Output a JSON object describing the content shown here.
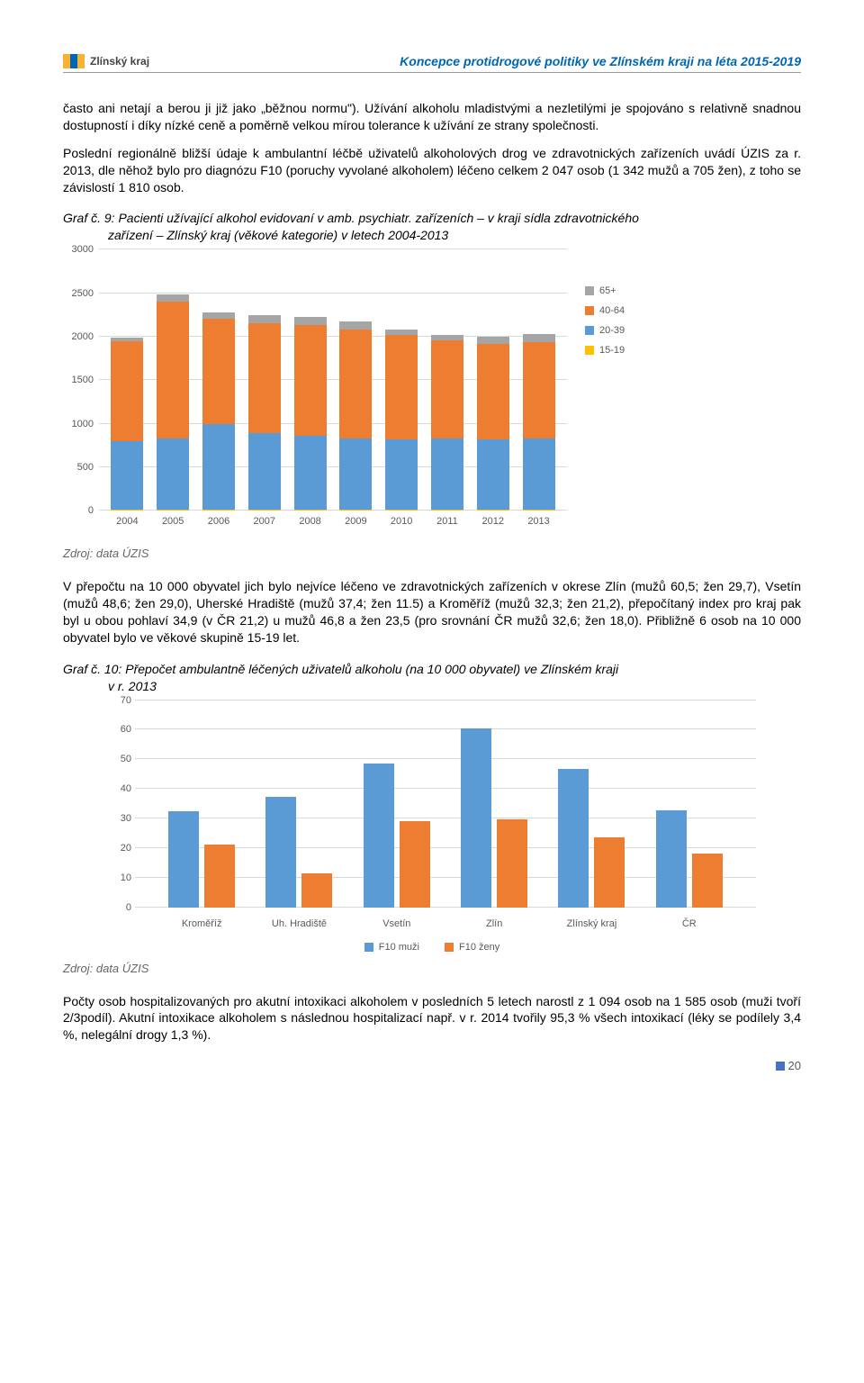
{
  "header": {
    "logo_text": "Zlínský kraj",
    "doc_title": "Koncepce protidrogové politiky ve Zlínském kraji na léta 2015-2019"
  },
  "paragraphs": {
    "p1": "často ani netají a berou ji již jako „běžnou normu\"). Užívání alkoholu mladistvými a nezletilými je spojováno s relativně snadnou dostupností i díky nízké ceně a poměrně velkou mírou tolerance k užívání ze strany společnosti.",
    "p2": "Poslední regionálně bližší údaje k ambulantní léčbě uživatelů alkoholových drog ve zdravotnických zařízeních uvádí ÚZIS za r. 2013, dle něhož bylo pro diagnózu F10 (poruchy vyvolané alkoholem) léčeno celkem 2 047 osob (1 342 mužů a 705 žen), z toho se závislostí 1 810 osob.",
    "p3": "V přepočtu na 10 000 obyvatel jich bylo nejvíce léčeno ve zdravotnických zařízeních v okrese Zlín (mužů 60,5; žen 29,7), Vsetín (mužů 48,6; žen 29,0), Uherské Hradiště (mužů 37,4; žen 11.5) a Kroměříž (mužů 32,3; žen 21,2), přepočítaný index pro kraj pak byl u obou pohlaví 34,9 (v ČR 21,2) u mužů 46,8 a žen 23,5 (pro srovnání ČR mužů 32,6; žen 18,0). Přibližně 6 osob na 10 000 obyvatel bylo ve věkové skupině 15-19 let.",
    "p4": "Počty osob hospitalizovaných pro akutní intoxikaci alkoholem v posledních 5 letech narostl z 1 094 osob na 1 585 osob (muži tvoří 2/3podíl). Akutní intoxikace alkoholem s následnou hospitalizací např. v r. 2014 tvořily 95,3 % všech intoxikací (léky se podílely 3,4 %, nelegální drogy 1,3 %)."
  },
  "chart1": {
    "title_line1": "Graf č. 9: Pacienti užívající alkohol evidovaní v amb. psychiatr. zařízeních – v kraji sídla zdravotnického",
    "title_line2": "zařízení – Zlínský kraj (věkové kategorie) v letech 2004-2013",
    "type": "stacked-bar",
    "ylim": [
      0,
      3000
    ],
    "ytick_step": 500,
    "yticks": [
      "0",
      "500",
      "1000",
      "1500",
      "2000",
      "2500",
      "3000"
    ],
    "categories": [
      "2004",
      "2005",
      "2006",
      "2007",
      "2008",
      "2009",
      "2010",
      "2011",
      "2012",
      "2013"
    ],
    "series": [
      {
        "name": "15-19",
        "color": "#ffc000",
        "values": [
          15,
          15,
          15,
          15,
          15,
          15,
          15,
          15,
          15,
          15
        ]
      },
      {
        "name": "20-39",
        "color": "#5b9bd5",
        "values": [
          780,
          820,
          980,
          880,
          850,
          820,
          800,
          820,
          800,
          820
        ]
      },
      {
        "name": "40-64",
        "color": "#ed7d31",
        "values": [
          1150,
          1570,
          1210,
          1260,
          1270,
          1250,
          1200,
          1120,
          1100,
          1100
        ]
      },
      {
        "name": "65+",
        "color": "#a5a5a5",
        "values": [
          45,
          80,
          70,
          90,
          90,
          95,
          70,
          70,
          80,
          95
        ]
      }
    ],
    "legend_order": [
      "65+",
      "40-64",
      "20-39",
      "15-19"
    ],
    "legend_colors": {
      "65+": "#a5a5a5",
      "40-64": "#ed7d31",
      "20-39": "#5b9bd5",
      "15-19": "#ffc000"
    },
    "background_color": "#ffffff",
    "grid_color": "#d9d9d9",
    "source": "Zdroj: data ÚZIS"
  },
  "chart2": {
    "title_line1": "Graf č. 10: Přepočet ambulantně léčených uživatelů alkoholu (na 10 000 obyvatel) ve Zlínském kraji",
    "title_line2": "v r. 2013",
    "type": "grouped-bar",
    "ylim": [
      0,
      70
    ],
    "ytick_step": 10,
    "yticks": [
      "0",
      "10",
      "20",
      "30",
      "40",
      "50",
      "60",
      "70"
    ],
    "categories": [
      "Kroměříž",
      "Uh. Hradiště",
      "Vsetín",
      "Zlín",
      "Zlínský kraj",
      "ČR"
    ],
    "series": [
      {
        "name": "F10 muži",
        "color": "#5b9bd5",
        "values": [
          32.3,
          37.4,
          48.6,
          60.5,
          46.8,
          32.6
        ]
      },
      {
        "name": "F10 ženy",
        "color": "#ed7d31",
        "values": [
          21.2,
          11.5,
          29.0,
          29.7,
          23.5,
          18.0
        ]
      }
    ],
    "background_color": "#ffffff",
    "grid_color": "#d9d9d9",
    "source": "Zdroj: data ÚZIS"
  },
  "page_number": "20"
}
